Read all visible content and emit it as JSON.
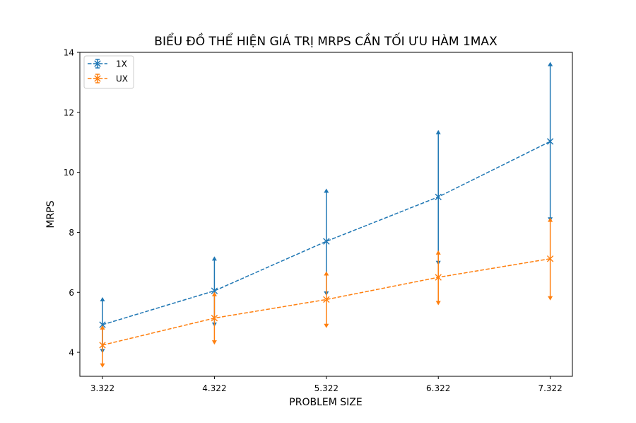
{
  "chart_data": {
    "type": "line",
    "title": "BIỂU ĐỒ THỂ HIỆN GIÁ TRỊ MRPS CẦN TỐI ƯU HÀM 1MAX",
    "xlabel": "PROBLEM SIZE",
    "ylabel": "MRPS",
    "x": [
      3.322,
      4.322,
      5.322,
      6.322,
      7.322
    ],
    "x_tick_labels": [
      "3.322",
      "4.322",
      "5.322",
      "6.322",
      "7.322"
    ],
    "y_ticks": [
      4,
      6,
      8,
      10,
      12,
      14
    ],
    "y_tick_labels": [
      "4",
      "6",
      "8",
      "10",
      "12",
      "14"
    ],
    "xlim": [
      3.12,
      7.52
    ],
    "ylim": [
      3.2,
      14.0
    ],
    "legend_position": "top-left",
    "grid": false,
    "series": [
      {
        "name": "1X",
        "color": "#1f77b4",
        "values": [
          4.92,
          6.05,
          7.7,
          9.18,
          11.03
        ],
        "err_low": [
          4.04,
          4.92,
          5.96,
          6.98,
          8.43
        ],
        "err_high": [
          5.77,
          7.13,
          9.39,
          11.34,
          13.61
        ]
      },
      {
        "name": "UX",
        "color": "#ff7f0e",
        "values": [
          4.24,
          5.14,
          5.76,
          6.5,
          7.12
        ],
        "err_low": [
          3.56,
          4.33,
          4.88,
          5.64,
          5.8
        ],
        "err_high": [
          4.83,
          5.94,
          6.63,
          7.33,
          8.42
        ]
      }
    ]
  }
}
